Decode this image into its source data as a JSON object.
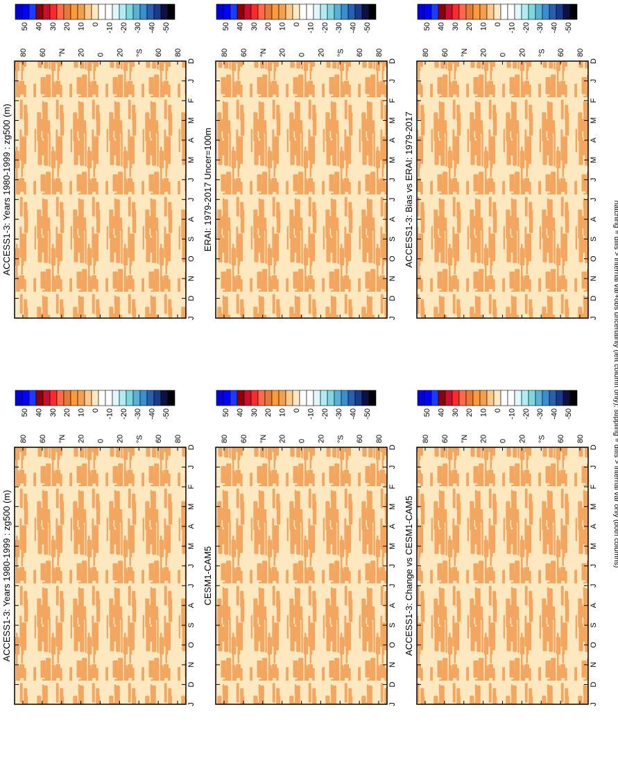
{
  "footnote": "hatching = diffs > internal var+obs uncertainty (left column only); stippling = diffs > internal var only (both columns)",
  "lat_ticks": [
    "80",
    "60",
    "°N",
    "20",
    "0",
    "20",
    "°S",
    "60",
    "80"
  ],
  "month_ticks": [
    "D",
    "J",
    "F",
    "M",
    "A",
    "M",
    "J",
    "J",
    "A",
    "S",
    "O",
    "N",
    "D",
    "J"
  ],
  "colorbar": {
    "labels": [
      "50",
      "40",
      "30",
      "20",
      "10",
      "0",
      "-10",
      "-20",
      "-30",
      "-40",
      "-50"
    ],
    "colors": [
      "#0000d8",
      "#0000ff",
      "#1a3cff",
      "#8b0000",
      "#c8102e",
      "#ff2a2a",
      "#ff6a4d",
      "#e37a35",
      "#ff9a3c",
      "#f0a050",
      "#ffc98a",
      "#ffe9c2",
      "#ffffff",
      "#ffffff",
      "#dff7ff",
      "#b0ecf2",
      "#7fd6dc",
      "#5ab0d6",
      "#3a8fd0",
      "#2a5fb0",
      "#1a3a8a",
      "#101040",
      "#000000"
    ]
  },
  "fill_colors": {
    "light": "#fde8bf",
    "dark": "#f2a660"
  },
  "chart_data": [
    {
      "type": "heatmap",
      "title": "ACCESS1-3: Years 1980-1999 : zg500 (m)",
      "variable": "zg500",
      "units": "m",
      "range": [
        -50,
        50
      ],
      "dominant_band": "0 to 10"
    },
    {
      "type": "heatmap",
      "title": "ACCESS1-3: Years 1980-1999 : zg500 (m)",
      "variable": "zg500",
      "units": "m",
      "range": [
        -50,
        50
      ],
      "dominant_band": "0 to 10"
    },
    {
      "type": "heatmap",
      "title": "ERAI: 1979-2017 Uncer=100m",
      "variable": "zg500",
      "units": "m",
      "range": [
        -50,
        50
      ],
      "dominant_band": "0 to 10"
    },
    {
      "type": "heatmap",
      "title": "CESM1-CAM5",
      "variable": "zg500",
      "units": "m",
      "range": [
        -50,
        50
      ],
      "dominant_band": "0 to 10"
    },
    {
      "type": "heatmap",
      "title": "ACCESS1-3: Bias vs ERAI: 1979-2017",
      "variable": "zg500",
      "units": "m",
      "range": [
        -50,
        50
      ],
      "dominant_band": "0 to 10"
    },
    {
      "type": "heatmap",
      "title": "ACCESS1-3: Change vs CESM1-CAM5",
      "variable": "zg500",
      "units": "m",
      "range": [
        -50,
        50
      ],
      "dominant_band": "0 to 10"
    }
  ]
}
